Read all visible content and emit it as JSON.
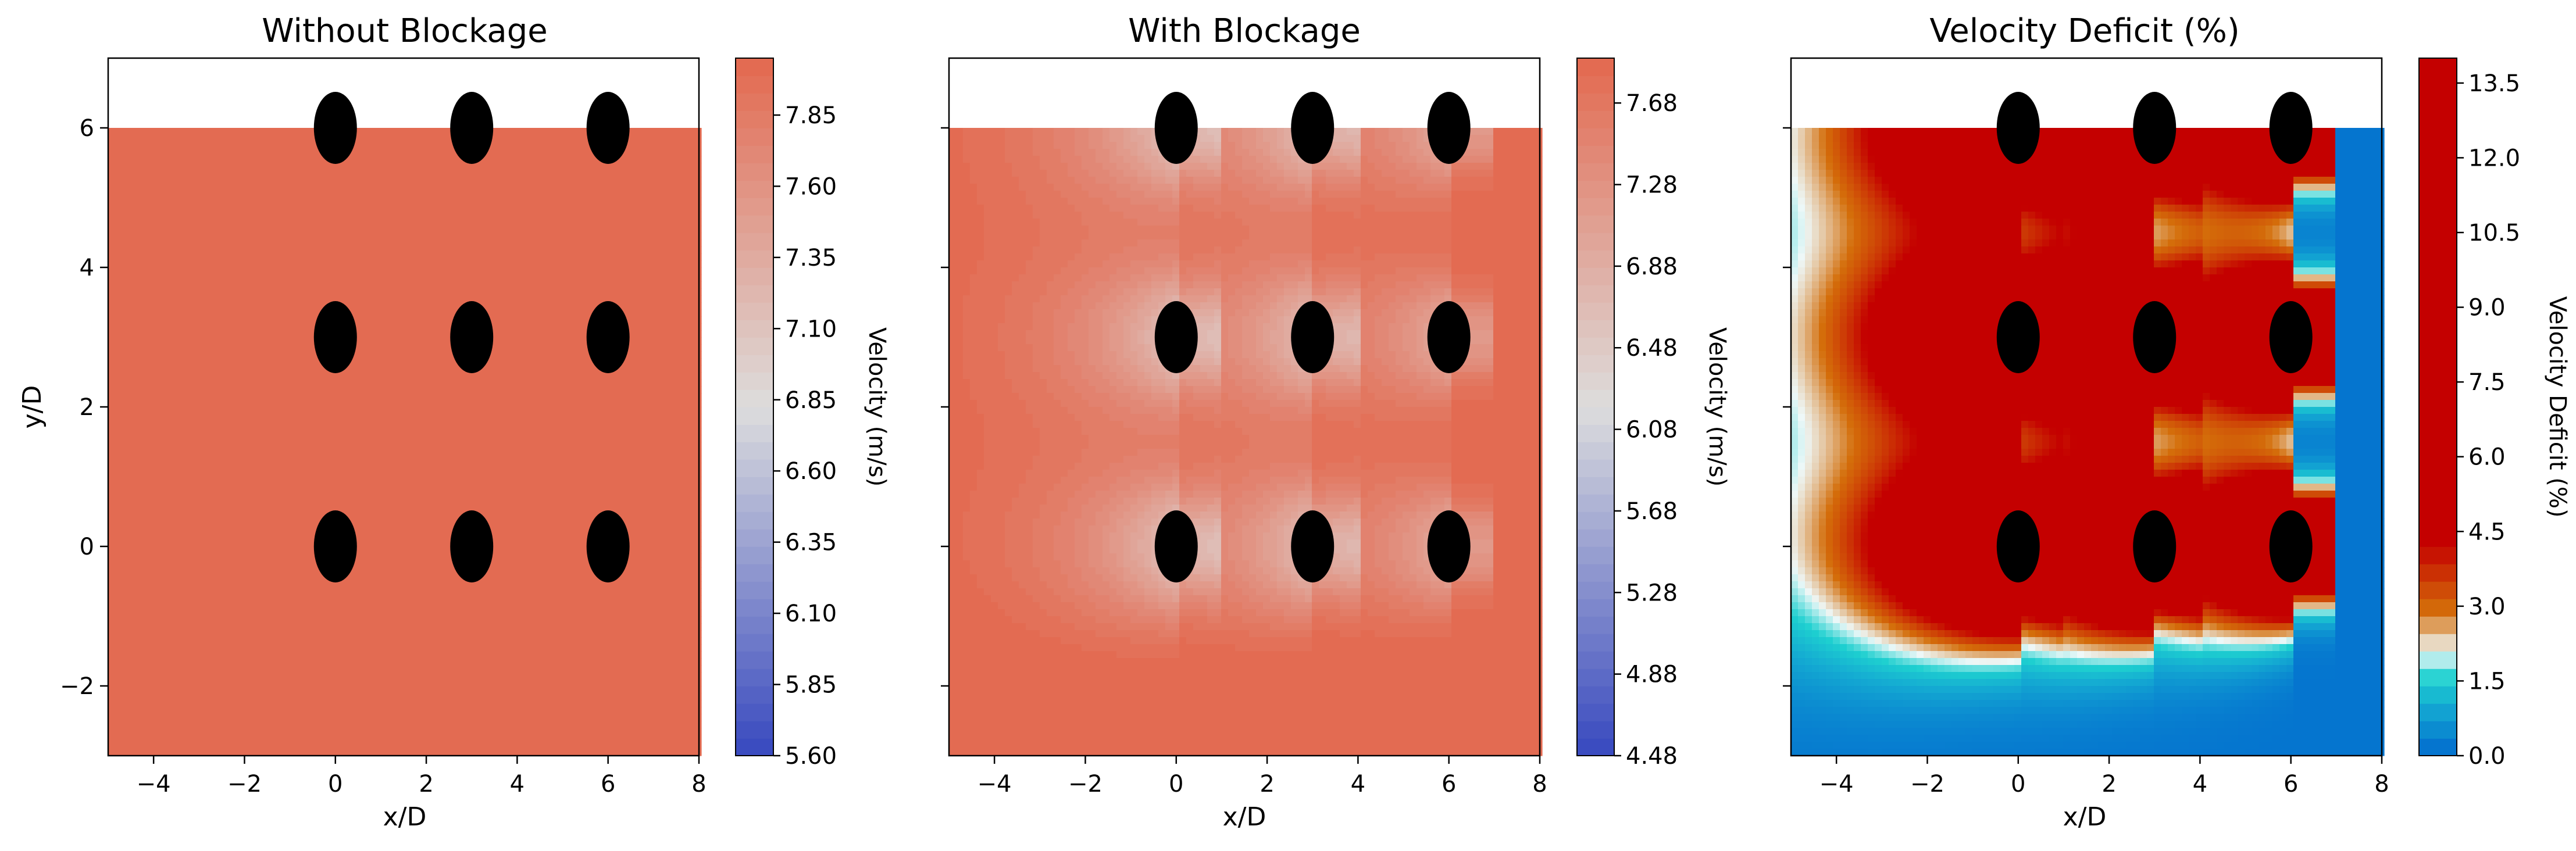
{
  "colors": {
    "cool": "#3b4cc0",
    "neutral": "#dddddd",
    "warm": "#e36b52",
    "deficit_low": "#0575cf",
    "deficit_mid": "#1ed0d0",
    "deficit_high": "#c40000",
    "turbine": "#000000"
  },
  "chart_data": [
    {
      "type": "heatmap",
      "title": "Without Blockage",
      "xlabel": "x/D",
      "ylabel": "y/D",
      "xlim": [
        -5,
        8
      ],
      "ylim": [
        -3,
        7
      ],
      "field_ylim": [
        -3,
        6
      ],
      "x_ticks": [
        "−4",
        "−2",
        "0",
        "2",
        "4",
        "6",
        "8"
      ],
      "x_tick_values": [
        -4,
        -2,
        0,
        2,
        4,
        6,
        8
      ],
      "y_ticks": [
        "−2",
        "0",
        "2",
        "4",
        "6"
      ],
      "y_tick_values": [
        -2,
        0,
        2,
        4,
        6
      ],
      "field": "uniform",
      "uniform_value": 8.0,
      "turbines_x": [
        0,
        3,
        6
      ],
      "turbines_y": [
        0,
        3,
        6
      ],
      "colorbar": {
        "label": "Velocity (m/s)",
        "min": 5.6,
        "max": 8.05,
        "ticks": [
          "5.60",
          "5.85",
          "6.10",
          "6.35",
          "6.60",
          "6.85",
          "7.10",
          "7.35",
          "7.60",
          "7.85"
        ],
        "tick_values": [
          5.6,
          5.85,
          6.1,
          6.35,
          6.6,
          6.85,
          7.1,
          7.35,
          7.6,
          7.85
        ],
        "colormap": "coolwarm",
        "levels": 40
      }
    },
    {
      "type": "heatmap",
      "title": "With Blockage",
      "xlabel": "x/D",
      "ylabel": "",
      "xlim": [
        -5,
        8
      ],
      "ylim": [
        -3,
        7
      ],
      "field_ylim": [
        -3,
        6
      ],
      "x_ticks": [
        "−4",
        "−2",
        "0",
        "2",
        "4",
        "6",
        "8"
      ],
      "x_tick_values": [
        -4,
        -2,
        0,
        2,
        4,
        6,
        8
      ],
      "y_tick_values": [
        -2,
        0,
        2,
        4,
        6
      ],
      "field": "velocity_blockage",
      "free_stream": 8.0,
      "turbines_x": [
        0,
        3,
        6
      ],
      "turbines_y": [
        0,
        3,
        6
      ],
      "colorbar": {
        "label": "Velocity (m/s)",
        "min": 4.48,
        "max": 7.9,
        "ticks": [
          "4.48",
          "4.88",
          "5.28",
          "5.68",
          "6.08",
          "6.48",
          "6.88",
          "7.28",
          "7.68"
        ],
        "tick_values": [
          4.48,
          4.88,
          5.28,
          5.68,
          6.08,
          6.48,
          6.88,
          7.28,
          7.68
        ],
        "colormap": "coolwarm",
        "levels": 40
      }
    },
    {
      "type": "heatmap",
      "title": "Velocity Deficit (%)",
      "xlabel": "x/D",
      "ylabel": "",
      "xlim": [
        -5,
        8
      ],
      "ylim": [
        -3,
        7
      ],
      "field_ylim": [
        -3,
        6
      ],
      "x_ticks": [
        "−4",
        "−2",
        "0",
        "2",
        "4",
        "6",
        "8"
      ],
      "x_tick_values": [
        -4,
        -2,
        0,
        2,
        4,
        6,
        8
      ],
      "y_tick_values": [
        -2,
        0,
        2,
        4,
        6
      ],
      "field": "deficit",
      "turbines_x": [
        0,
        3,
        6
      ],
      "turbines_y": [
        0,
        3,
        6
      ],
      "colorbar": {
        "label": "Velocity Deficit (%)",
        "min": 0,
        "max": 14.0,
        "ticks": [
          "0.0",
          "1.5",
          "3.0",
          "4.5",
          "6.0",
          "7.5",
          "9.0",
          "10.5",
          "12.0",
          "13.5"
        ],
        "tick_values": [
          0,
          1.5,
          3.0,
          4.5,
          6.0,
          7.5,
          9.0,
          10.5,
          12.0,
          13.5
        ],
        "colormap": "deficit",
        "levels": 40
      }
    }
  ]
}
